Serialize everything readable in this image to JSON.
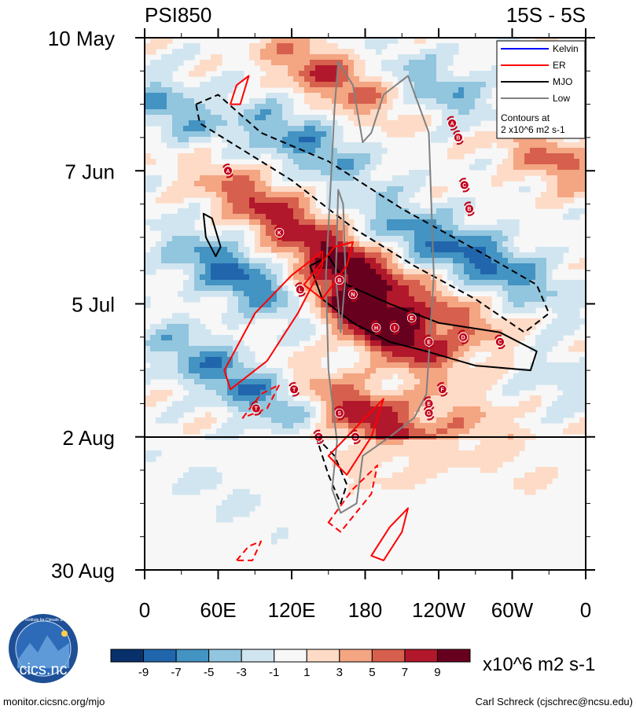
{
  "chart_data": {
    "type": "heatmap",
    "variable": "PSI850",
    "latitude_band": "15S - 5S",
    "ylabels": [
      "10 May",
      "7 Jun",
      "5 Jul",
      "2 Aug",
      "30 Aug"
    ],
    "xlabels": [
      "0",
      "60E",
      "120E",
      "180",
      "120W",
      "60W",
      "0"
    ],
    "x_range_deg": [
      0,
      360
    ],
    "y_range_days": [
      0,
      112
    ],
    "forecast_start_day": 84,
    "legend": [
      {
        "label": "Kelvin",
        "color": "#0000ff"
      },
      {
        "label": "ER",
        "color": "#ff0000"
      },
      {
        "label": "MJO",
        "color": "#000000"
      },
      {
        "label": "Low",
        "color": "#808080"
      }
    ],
    "contour_note": [
      "Contours at",
      "2 x10^6 m2 s-1"
    ],
    "colorbar": {
      "levels": [
        -9,
        -7,
        -5,
        -3,
        -1,
        1,
        3,
        5,
        7,
        9
      ],
      "colors": [
        "#08306b",
        "#2166ac",
        "#4393c3",
        "#92c5de",
        "#d1e5f0",
        "#f7f7f7",
        "#fddbc7",
        "#f4a582",
        "#d6604d",
        "#b2182b",
        "#67001f"
      ],
      "units": "x10^6 m2 s-1"
    },
    "features": [
      {
        "lon": 95,
        "day": 35,
        "amp": 7
      },
      {
        "lon": 75,
        "day": 50,
        "amp": -8
      },
      {
        "lon": 130,
        "day": 22,
        "amp": -6
      },
      {
        "lon": 170,
        "day": 48,
        "amp": 9
      },
      {
        "lon": 180,
        "day": 58,
        "amp": 6
      },
      {
        "lon": 200,
        "day": 62,
        "amp": 8
      },
      {
        "lon": 225,
        "day": 42,
        "amp": -5
      },
      {
        "lon": 265,
        "day": 60,
        "amp": 5
      },
      {
        "lon": 290,
        "day": 48,
        "amp": -6
      },
      {
        "lon": 185,
        "day": 80,
        "amp": 9
      },
      {
        "lon": 165,
        "day": 88,
        "amp": 4
      },
      {
        "lon": 60,
        "day": 95,
        "amp": -3
      },
      {
        "lon": 300,
        "day": 92,
        "amp": 2
      },
      {
        "lon": 330,
        "day": 25,
        "amp": 6
      },
      {
        "lon": 20,
        "day": 15,
        "amp": -5
      },
      {
        "lon": 150,
        "day": 8,
        "amp": 7
      },
      {
        "lon": 250,
        "day": 12,
        "amp": -5
      },
      {
        "lon": 50,
        "day": 68,
        "amp": -5
      },
      {
        "lon": 110,
        "day": 78,
        "amp": -5
      },
      {
        "lon": 330,
        "day": 70,
        "amp": -3
      },
      {
        "lon": 260,
        "day": 80,
        "amp": 3
      }
    ],
    "contours": [
      {
        "series": "MJO",
        "dash": true,
        "points": [
          [
            42,
            14
          ],
          [
            60,
            12
          ],
          [
            95,
            20
          ],
          [
            150,
            26
          ],
          [
            210,
            36
          ],
          [
            280,
            46
          ],
          [
            320,
            52
          ],
          [
            330,
            58
          ],
          [
            310,
            62
          ],
          [
            270,
            55
          ],
          [
            220,
            48
          ],
          [
            170,
            40
          ],
          [
            120,
            30
          ],
          [
            70,
            22
          ],
          [
            45,
            18
          ]
        ]
      },
      {
        "series": "MJO",
        "dash": false,
        "points": [
          [
            135,
            48
          ],
          [
            150,
            46
          ],
          [
            165,
            52
          ],
          [
            200,
            56
          ],
          [
            240,
            60
          ],
          [
            290,
            62
          ],
          [
            320,
            66
          ],
          [
            315,
            70
          ],
          [
            270,
            69
          ],
          [
            230,
            66
          ],
          [
            200,
            64
          ],
          [
            170,
            60
          ],
          [
            145,
            55
          ]
        ]
      },
      {
        "series": "MJO",
        "dash": false,
        "points": [
          [
            48,
            37
          ],
          [
            55,
            38
          ],
          [
            62,
            44
          ],
          [
            58,
            46
          ],
          [
            50,
            42
          ]
        ]
      },
      {
        "series": "MJO",
        "dash": true,
        "points": [
          [
            140,
            84
          ],
          [
            155,
            88
          ],
          [
            165,
            94
          ],
          [
            160,
            98
          ],
          [
            150,
            92
          ]
        ]
      },
      {
        "series": "Low",
        "dash": false,
        "points": [
          [
            155,
            15
          ],
          [
            158,
            5
          ],
          [
            170,
            10
          ],
          [
            178,
            22
          ],
          [
            185,
            20
          ],
          [
            195,
            12
          ],
          [
            215,
            8
          ],
          [
            232,
            20
          ],
          [
            236,
            50
          ],
          [
            230,
            75
          ],
          [
            220,
            80
          ],
          [
            200,
            84
          ],
          [
            178,
            88
          ],
          [
            173,
            98
          ],
          [
            160,
            100
          ],
          [
            153,
            95
          ],
          [
            157,
            85
          ],
          [
            150,
            70
          ],
          [
            148,
            50
          ],
          [
            152,
            30
          ]
        ]
      },
      {
        "series": "Low",
        "dash": false,
        "points": [
          [
            158,
            32
          ],
          [
            162,
            35
          ],
          [
            164,
            50
          ],
          [
            160,
            62
          ],
          [
            156,
            50
          ]
        ]
      },
      {
        "series": "ER",
        "dash": false,
        "points": [
          [
            65,
            70
          ],
          [
            90,
            58
          ],
          [
            120,
            50
          ],
          [
            145,
            45
          ],
          [
            145,
            48
          ],
          [
            125,
            58
          ],
          [
            100,
            68
          ],
          [
            70,
            74
          ]
        ]
      },
      {
        "series": "ER",
        "dash": false,
        "points": [
          [
            130,
            52
          ],
          [
            155,
            44
          ],
          [
            170,
            43
          ],
          [
            165,
            48
          ],
          [
            145,
            55
          ]
        ]
      },
      {
        "series": "ER",
        "dash": false,
        "points": [
          [
            150,
            88
          ],
          [
            180,
            80
          ],
          [
            195,
            76
          ],
          [
            185,
            84
          ],
          [
            165,
            92
          ]
        ]
      },
      {
        "series": "ER",
        "dash": false,
        "points": [
          [
            185,
            109
          ],
          [
            200,
            103
          ],
          [
            215,
            99
          ],
          [
            210,
            104
          ],
          [
            195,
            110
          ]
        ]
      },
      {
        "series": "ER",
        "dash": false,
        "points": [
          [
            70,
            14
          ],
          [
            75,
            10
          ],
          [
            85,
            8
          ],
          [
            78,
            14
          ]
        ]
      },
      {
        "series": "ER",
        "dash": true,
        "points": [
          [
            150,
            102
          ],
          [
            170,
            95
          ],
          [
            190,
            90
          ],
          [
            185,
            96
          ],
          [
            160,
            104
          ]
        ]
      },
      {
        "series": "ER",
        "dash": true,
        "points": [
          [
            75,
            110
          ],
          [
            85,
            107
          ],
          [
            95,
            106
          ],
          [
            88,
            110
          ]
        ]
      },
      {
        "series": "ER",
        "dash": true,
        "points": [
          [
            80,
            80
          ],
          [
            95,
            75
          ],
          [
            110,
            73
          ],
          [
            100,
            78
          ]
        ]
      }
    ],
    "storms": [
      {
        "label": "A",
        "lon": 251,
        "day": 18
      },
      {
        "label": "B",
        "lon": 256,
        "day": 21
      },
      {
        "label": "A",
        "lon": 68,
        "day": 28
      },
      {
        "label": "C",
        "lon": 261,
        "day": 31
      },
      {
        "label": "B",
        "lon": 265,
        "day": 36
      },
      {
        "label": "K",
        "lon": 110,
        "day": 41
      },
      {
        "label": "B",
        "lon": 159,
        "day": 51
      },
      {
        "label": "L",
        "lon": 127,
        "day": 53
      },
      {
        "label": "N",
        "lon": 170,
        "day": 54
      },
      {
        "label": "E",
        "lon": 218,
        "day": 59
      },
      {
        "label": "H",
        "lon": 189,
        "day": 61
      },
      {
        "label": "I",
        "lon": 204,
        "day": 61
      },
      {
        "label": "E",
        "lon": 232,
        "day": 64
      },
      {
        "label": "D",
        "lon": 260,
        "day": 63
      },
      {
        "label": "C",
        "lon": 290,
        "day": 64
      },
      {
        "label": "T",
        "lon": 122,
        "day": 74
      },
      {
        "label": "F",
        "lon": 243,
        "day": 74
      },
      {
        "label": "T",
        "lon": 91,
        "day": 78
      },
      {
        "label": "E",
        "lon": 232,
        "day": 77
      },
      {
        "label": "G",
        "lon": 232,
        "day": 79
      },
      {
        "label": "S",
        "lon": 159,
        "day": 79
      },
      {
        "label": "F",
        "lon": 142,
        "day": 84
      },
      {
        "label": "O",
        "lon": 172,
        "day": 84
      }
    ]
  },
  "footer": {
    "logo_text": "cics.nc",
    "logo_ring_text": "Cooperative Institute for Climate and Satellites",
    "url": "monitor.cicsnc.org/mjo",
    "credit": "Carl Schreck (cjschrec@ncsu.edu)"
  }
}
